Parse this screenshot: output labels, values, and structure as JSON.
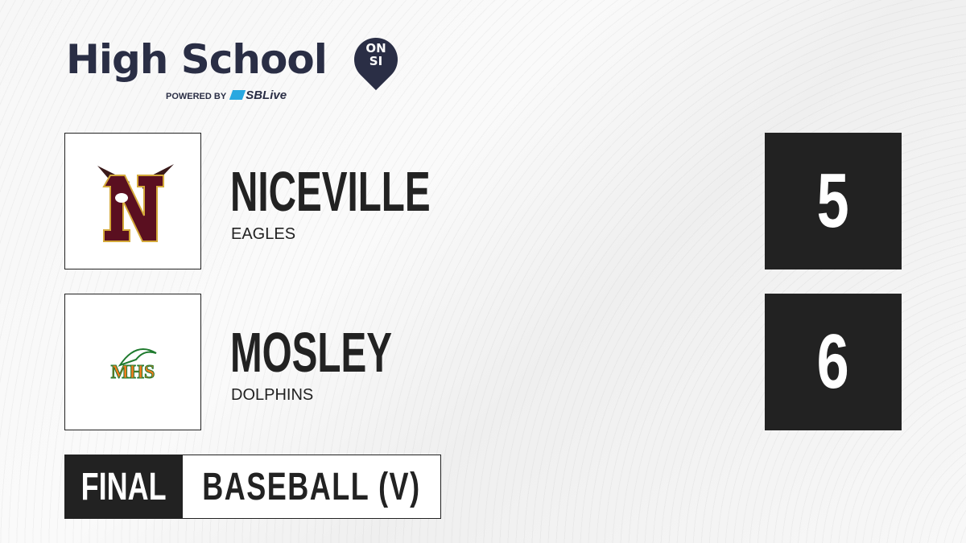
{
  "brand": {
    "title": "High School",
    "badge_top": "ON",
    "badge_bottom": "SI",
    "powered_by": "POWERED BY",
    "partner": "SBLive",
    "accent": "#29a8e0",
    "navy": "#2a2e45"
  },
  "teams": [
    {
      "name": "NICEVILLE",
      "mascot": "EAGLES",
      "score": "5",
      "logo_colors": [
        "#5a0f20",
        "#d4a93a"
      ]
    },
    {
      "name": "MOSLEY",
      "mascot": "DOLPHINS",
      "score": "6",
      "logo_text": "MHS",
      "logo_colors": [
        "#f07a1e",
        "#1f7a2e"
      ]
    }
  ],
  "status": {
    "state": "FINAL",
    "sport": "BASEBALL (V)"
  }
}
